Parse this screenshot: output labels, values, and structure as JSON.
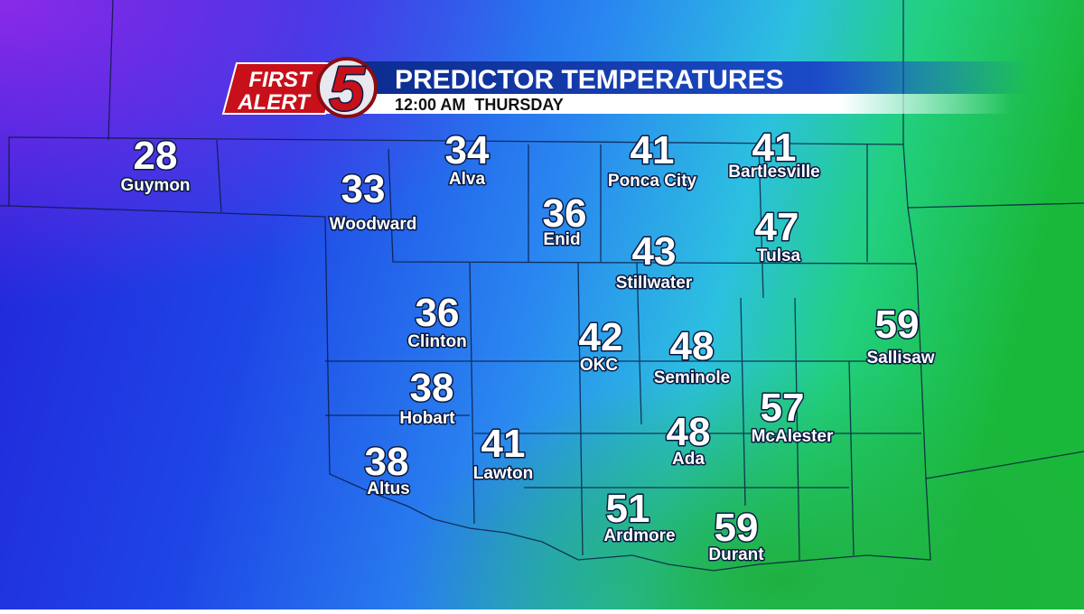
{
  "header": {
    "logo": {
      "line1": "FIRST",
      "line2": "ALERT",
      "channel": "5"
    },
    "title": "PREDICTOR TEMPERATURES",
    "subtitle": "12:00 AM  THURSDAY"
  },
  "cities": [
    {
      "name": "Guymon",
      "temperature": 28
    },
    {
      "name": "Alva",
      "temperature": 34
    },
    {
      "name": "Ponca City",
      "temperature": 41
    },
    {
      "name": "Bartlesville",
      "temperature": 41
    },
    {
      "name": "Woodward",
      "temperature": 33
    },
    {
      "name": "Enid",
      "temperature": 36
    },
    {
      "name": "Tulsa",
      "temperature": 47
    },
    {
      "name": "Stillwater",
      "temperature": 43
    },
    {
      "name": "Clinton",
      "temperature": 36
    },
    {
      "name": "OKC",
      "temperature": 42
    },
    {
      "name": "Seminole",
      "temperature": 48
    },
    {
      "name": "Sallisaw",
      "temperature": 59
    },
    {
      "name": "Hobart",
      "temperature": 38
    },
    {
      "name": "McAlester",
      "temperature": 57
    },
    {
      "name": "Lawton",
      "temperature": 41
    },
    {
      "name": "Ada",
      "temperature": 48
    },
    {
      "name": "Altus",
      "temperature": 38
    },
    {
      "name": "Ardmore",
      "temperature": 51
    },
    {
      "name": "Durant",
      "temperature": 59
    }
  ]
}
